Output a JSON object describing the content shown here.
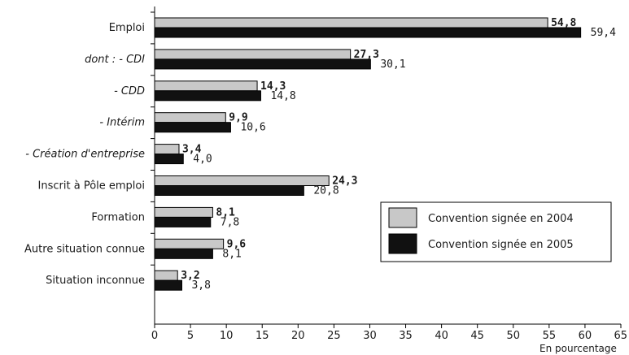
{
  "chart_data": {
    "type": "bar",
    "orientation": "horizontal",
    "categories": [
      "Emploi",
      "dont : - CDI",
      "- CDD",
      "- Intérim",
      "- Création d'entreprise",
      "Inscrit à Pôle emploi",
      "Formation",
      "Autre situation connue",
      "Situation inconnue"
    ],
    "italic_categories": [
      false,
      true,
      true,
      true,
      true,
      false,
      false,
      false,
      false
    ],
    "series": [
      {
        "name": "Convention signée en 2004",
        "color": "#c8c8c8",
        "values": [
          54.8,
          27.3,
          14.3,
          9.9,
          3.4,
          24.3,
          8.1,
          9.6,
          3.2
        ],
        "labels": [
          "54,8",
          "27,3",
          "14,3",
          "9,9",
          "3,4",
          "24,3",
          "8,1",
          "9,6",
          "3,2"
        ]
      },
      {
        "name": "Convention signée en 2005",
        "color": "#111111",
        "values": [
          59.4,
          30.1,
          14.8,
          10.6,
          4.0,
          20.8,
          7.8,
          8.1,
          3.8
        ],
        "labels": [
          "59,4",
          "30,1",
          "14,8",
          "10,6",
          "4,0",
          "20,8",
          "7,8",
          "8,1",
          "3,8"
        ]
      }
    ],
    "xlim": [
      0,
      65
    ],
    "xticks": [
      0,
      5,
      10,
      15,
      20,
      25,
      30,
      35,
      40,
      45,
      50,
      55,
      60,
      65
    ],
    "xlabel": "En pourcentage",
    "legend_position": "right",
    "grid": false
  }
}
